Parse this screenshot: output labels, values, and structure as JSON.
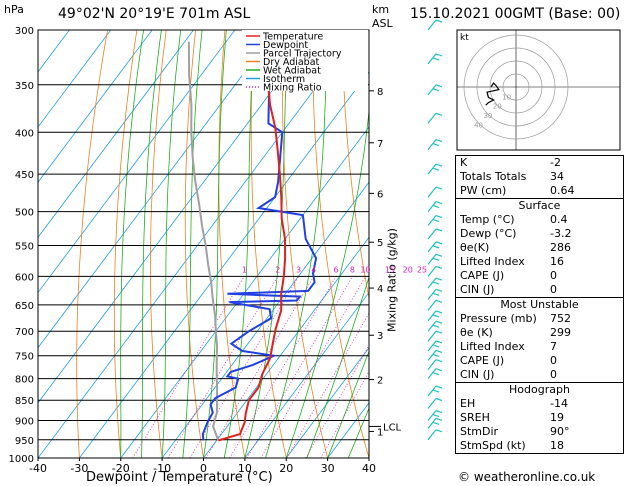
{
  "header": {
    "location": "49°02'N  20°19'E  701m  ASL",
    "timestamp": "15.10.2021  00GMT  (Base: 00)",
    "hpa_unit": "hPa",
    "km_unit": "km",
    "asl_unit": "ASL",
    "mixing_ratio_label": "Mixing Ratio (g/kg)",
    "xlabel": "Dewpoint / Temperature (°C)",
    "credit": "© weatheronline.co.uk"
  },
  "legend": [
    {
      "label": "Temperature",
      "color": "#e02020",
      "style": "solid"
    },
    {
      "label": "Dewpoint",
      "color": "#2040e0",
      "style": "solid"
    },
    {
      "label": "Parcel Trajectory",
      "color": "#a0a0a0",
      "style": "solid"
    },
    {
      "label": "Dry Adiabat",
      "color": "#f08020",
      "style": "solid"
    },
    {
      "label": "Wet Adiabat",
      "color": "#20b020",
      "style": "solid"
    },
    {
      "label": "Isotherm",
      "color": "#20a0e0",
      "style": "solid"
    },
    {
      "label": "Mixing Ratio",
      "color": "#e020c0",
      "style": "dotted"
    }
  ],
  "chart_data": {
    "type": "line",
    "title": "49°02'N  20°19'E  701m  ASL",
    "xlabel": "Dewpoint / Temperature (°C)",
    "ylabel": "hPa",
    "xlim": [
      -40,
      40
    ],
    "ylim": [
      1000,
      300
    ],
    "y_scale": "log",
    "x_ticks": [
      -40,
      -30,
      -20,
      -10,
      0,
      10,
      20,
      30,
      40
    ],
    "pressure_ticks": [
      300,
      350,
      400,
      450,
      500,
      550,
      600,
      650,
      700,
      750,
      800,
      850,
      900,
      950,
      1000
    ],
    "km_ticks": [
      {
        "label": "1",
        "p": 928
      },
      {
        "label": "2",
        "p": 802
      },
      {
        "label": "3",
        "p": 708
      },
      {
        "label": "4",
        "p": 620
      },
      {
        "label": "5",
        "p": 545
      },
      {
        "label": "6",
        "p": 475
      },
      {
        "label": "7",
        "p": 412
      },
      {
        "label": "8",
        "p": 356
      }
    ],
    "lcl": {
      "label": "LCL",
      "p": 915
    },
    "mixing_ratio_labels": [
      "1",
      "2",
      "3",
      "4",
      "6",
      "8",
      "10",
      "15",
      "20",
      "25"
    ],
    "mixing_ratio_values": [
      1,
      2,
      3,
      4,
      6,
      8,
      10,
      15,
      20,
      25
    ],
    "series": [
      {
        "name": "Temperature",
        "color": "#e02020",
        "points": [
          [
            0.4,
            952
          ],
          [
            4.5,
            935
          ],
          [
            3.5,
            905
          ],
          [
            2.0,
            880
          ],
          [
            0.5,
            850
          ],
          [
            0.5,
            820
          ],
          [
            -1,
            790
          ],
          [
            -2,
            755
          ],
          [
            -4,
            725
          ],
          [
            -6,
            695
          ],
          [
            -8,
            660
          ],
          [
            -11,
            630
          ],
          [
            -13.5,
            600
          ],
          [
            -16.5,
            570
          ],
          [
            -20,
            540
          ],
          [
            -24.5,
            510
          ],
          [
            -28.5,
            480
          ],
          [
            -33,
            450
          ],
          [
            -38,
            420
          ],
          [
            -42.5,
            395
          ],
          [
            -48,
            370
          ],
          [
            -53,
            345
          ],
          [
            -57,
            320
          ],
          [
            -61,
            300
          ]
        ]
      },
      {
        "name": "Dewpoint",
        "color": "#2040e0",
        "points": [
          [
            -3.2,
            952
          ],
          [
            -4.5,
            935
          ],
          [
            -5.5,
            905
          ],
          [
            -6,
            880
          ],
          [
            -8,
            860
          ],
          [
            -8,
            845
          ],
          [
            -5,
            820
          ],
          [
            -6,
            800
          ],
          [
            -9,
            795
          ],
          [
            -9,
            785
          ],
          [
            -5,
            770
          ],
          [
            -1.5,
            750
          ],
          [
            -10,
            740
          ],
          [
            -14,
            725
          ],
          [
            -12,
            700
          ],
          [
            -9,
            675
          ],
          [
            -11,
            658
          ],
          [
            -22,
            645
          ],
          [
            -6,
            642
          ],
          [
            -6,
            635
          ],
          [
            -24,
            630
          ],
          [
            -5,
            625
          ],
          [
            -5,
            610
          ],
          [
            -7,
            595
          ],
          [
            -9,
            570
          ],
          [
            -15,
            540
          ],
          [
            -20,
            505
          ],
          [
            -32,
            495
          ],
          [
            -30,
            480
          ],
          [
            -32,
            460
          ],
          [
            -40,
            400
          ],
          [
            -45,
            390
          ],
          [
            -50,
            360
          ],
          [
            -56,
            330
          ],
          [
            -60,
            300
          ]
        ]
      },
      {
        "name": "Parcel Trajectory",
        "color": "#a0a0a0",
        "points": [
          [
            0.4,
            952
          ],
          [
            -3.4,
            915
          ],
          [
            -5,
            880
          ],
          [
            -7.2,
            850
          ],
          [
            -9.5,
            820
          ],
          [
            -12,
            790
          ],
          [
            -14.5,
            760
          ],
          [
            -17,
            730
          ],
          [
            -20,
            700
          ],
          [
            -23,
            670
          ],
          [
            -26.5,
            640
          ],
          [
            -30,
            610
          ],
          [
            -34,
            580
          ],
          [
            -38,
            550
          ],
          [
            -42.5,
            520
          ],
          [
            -47,
            490
          ],
          [
            -52,
            460
          ],
          [
            -57,
            430
          ],
          [
            -62,
            400
          ],
          [
            -67,
            370
          ],
          [
            -73,
            340
          ],
          [
            -79,
            310
          ]
        ]
      }
    ]
  },
  "wind_barbs": {
    "color": "#20c0c0",
    "pressures": [
      300,
      330,
      360,
      390,
      420,
      450,
      480,
      500,
      520,
      540,
      560,
      580,
      600,
      620,
      640,
      660,
      680,
      700,
      720,
      740,
      760,
      780,
      800,
      840,
      870,
      900,
      920,
      950
    ]
  },
  "hodograph": {
    "label": "kt",
    "ring_labels": [
      "10",
      "20",
      "30",
      "40"
    ],
    "path": [
      [
        0,
        0
      ],
      [
        2,
        -3
      ],
      [
        4,
        -1
      ],
      [
        6,
        2
      ],
      [
        -3,
        4
      ],
      [
        -2,
        8
      ],
      [
        2,
        10
      ],
      [
        -2,
        12
      ],
      [
        -4,
        14
      ]
    ]
  },
  "indices": {
    "rows": [
      {
        "key": "K",
        "value": "-2"
      },
      {
        "key": "Totals Totals",
        "value": "34"
      },
      {
        "key": "PW (cm)",
        "value": "0.64"
      }
    ]
  },
  "surface": {
    "title": "Surface",
    "rows": [
      {
        "key": "Temp (°C)",
        "value": "0.4"
      },
      {
        "key": "Dewp (°C)",
        "value": "-3.2"
      },
      {
        "key": "θe(K)",
        "value": "286"
      },
      {
        "key": "Lifted Index",
        "value": "16"
      },
      {
        "key": "CAPE (J)",
        "value": "0"
      },
      {
        "key": "CIN (J)",
        "value": "0"
      }
    ]
  },
  "most_unstable": {
    "title": "Most Unstable",
    "rows": [
      {
        "key": "Pressure (mb)",
        "value": "752"
      },
      {
        "key": "θe (K)",
        "value": "299"
      },
      {
        "key": "Lifted Index",
        "value": "7"
      },
      {
        "key": "CAPE (J)",
        "value": "0"
      },
      {
        "key": "CIN (J)",
        "value": "0"
      }
    ]
  },
  "hodograph_table": {
    "title": "Hodograph",
    "rows": [
      {
        "key": "EH",
        "value": "-14"
      },
      {
        "key": "SREH",
        "value": "19"
      },
      {
        "key": "StmDir",
        "value": "90°"
      },
      {
        "key": "StmSpd (kt)",
        "value": "18"
      }
    ]
  }
}
